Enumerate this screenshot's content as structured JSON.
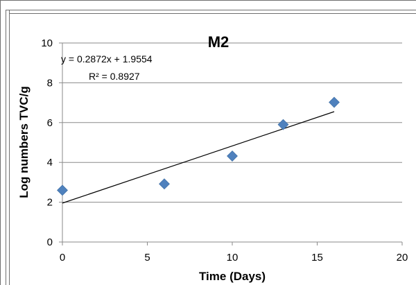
{
  "chart_data": {
    "type": "scatter",
    "title": "M2",
    "xlabel": "Time (Days)",
    "ylabel": "Log numbers TVC/g",
    "xlim": [
      0,
      20
    ],
    "ylim": [
      0,
      10
    ],
    "x_ticks": [
      0,
      5,
      10,
      15,
      20
    ],
    "y_ticks": [
      0,
      2,
      4,
      6,
      8,
      10
    ],
    "grid": true,
    "marker_color": "#4f81bd",
    "series": [
      {
        "x": [
          0,
          6,
          10,
          13,
          16
        ],
        "y": [
          2.6,
          2.92,
          4.32,
          5.9,
          7.02
        ]
      }
    ],
    "trendline": {
      "slope": 0.2872,
      "intercept": 1.9554,
      "x_range": [
        0,
        16
      ],
      "equation": "y = 0.2872x + 1.9554",
      "r_squared": "R² = 0.8927"
    }
  }
}
